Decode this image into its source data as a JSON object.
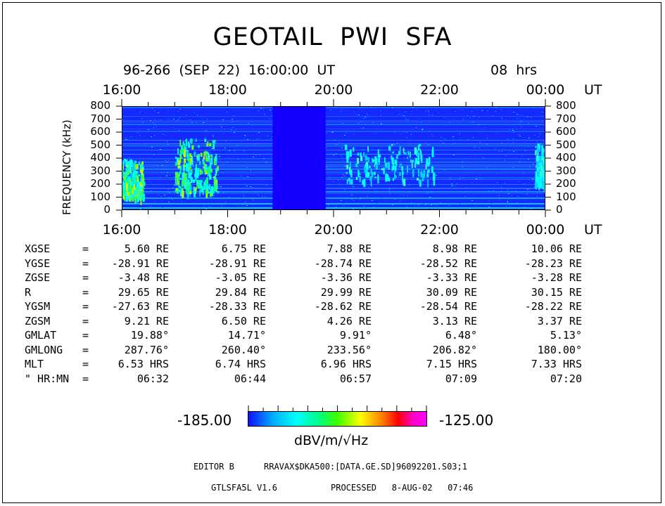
{
  "title": "GEOTAIL  PWI  SFA",
  "header": {
    "date": "96-266  (SEP  22)  16:00:00  UT",
    "duration": "08  hrs"
  },
  "time_axis": {
    "labels": [
      "16:00",
      "18:00",
      "20:00",
      "22:00",
      "00:00"
    ],
    "unit": "UT"
  },
  "chart_data": {
    "type": "heatmap",
    "title": "GEOTAIL  PWI  SFA",
    "ylabel": "FREQUENCY (kHz)",
    "y_ticks": [
      "0",
      "100",
      "200",
      "300",
      "400",
      "500",
      "600",
      "700",
      "800"
    ],
    "ylim": [
      0,
      800
    ],
    "x_ticks": [
      "16:00",
      "18:00",
      "20:00",
      "22:00",
      "00:00"
    ],
    "xlabel": "UT",
    "xlim_hours": [
      16,
      24
    ],
    "data_gap_hours": [
      18.85,
      19.85
    ],
    "colorbar": {
      "min": "-185.00",
      "max": "-125.00",
      "unit": "dBV/m/√Hz"
    },
    "activity_regions": [
      {
        "t_start": 16.0,
        "t_end": 16.4,
        "f_low": 100,
        "f_high": 400,
        "level": "high"
      },
      {
        "t_start": 17.0,
        "t_end": 17.8,
        "f_low": 140,
        "f_high": 560,
        "level": "high"
      },
      {
        "t_start": 20.2,
        "t_end": 21.9,
        "f_low": 230,
        "f_high": 520,
        "level": "moderate"
      },
      {
        "t_start": 23.8,
        "t_end": 24.0,
        "f_low": 200,
        "f_high": 520,
        "level": "moderate"
      }
    ]
  },
  "ephemeris": {
    "rows": [
      {
        "label": "XGSE",
        "eq": "=",
        "values": [
          "5.60 RE",
          "6.75 RE",
          "7.88 RE",
          "8.98 RE",
          "10.06 RE"
        ]
      },
      {
        "label": "YGSE",
        "eq": "=",
        "values": [
          "-28.91 RE",
          "-28.91 RE",
          "-28.74 RE",
          "-28.52 RE",
          "-28.23 RE"
        ]
      },
      {
        "label": "ZGSE",
        "eq": "=",
        "values": [
          "-3.48 RE",
          "-3.05 RE",
          "-3.36 RE",
          "-3.33 RE",
          "-3.28 RE"
        ]
      },
      {
        "label": "R",
        "eq": "=",
        "values": [
          "29.65 RE",
          "29.84 RE",
          "29.99 RE",
          "30.09 RE",
          "30.15 RE"
        ]
      },
      {
        "label": "YGSM",
        "eq": "=",
        "values": [
          "-27.63 RE",
          "-28.33 RE",
          "-28.62 RE",
          "-28.54 RE",
          "-28.22 RE"
        ]
      },
      {
        "label": "ZGSM",
        "eq": "=",
        "values": [
          "9.21 RE",
          "6.50 RE",
          "4.26 RE",
          "3.13 RE",
          "3.37 RE"
        ]
      },
      {
        "label": "GMLAT",
        "eq": "=",
        "values": [
          "19.88°",
          "14.71°",
          "9.91°",
          "6.48°",
          "5.13°"
        ]
      },
      {
        "label": "GMLONG",
        "eq": "=",
        "values": [
          "287.76°",
          "260.40°",
          "233.56°",
          "206.82°",
          "180.00°"
        ]
      },
      {
        "label": "MLT",
        "eq": "=",
        "values": [
          "6.53 HRS",
          "6.74 HRS",
          "6.96 HRS",
          "7.15 HRS",
          "7.33 HRS"
        ]
      },
      {
        "label": "\" HR:MN",
        "eq": "=",
        "values": [
          "06:32",
          "06:44",
          "06:57",
          "07:09",
          "07:20"
        ]
      }
    ]
  },
  "colorbar": {
    "min_label": "-185.00",
    "max_label": "-125.00",
    "unit_label": "dBV/m/√Hz"
  },
  "footer": {
    "editor": "EDITOR B",
    "file": "RRAVAX$DKA500:[DATA.GE.SD]96092201.S03;1",
    "program": "GTLSFA5L V1.6",
    "processed": "PROCESSED   8-AUG-02   07:46"
  }
}
